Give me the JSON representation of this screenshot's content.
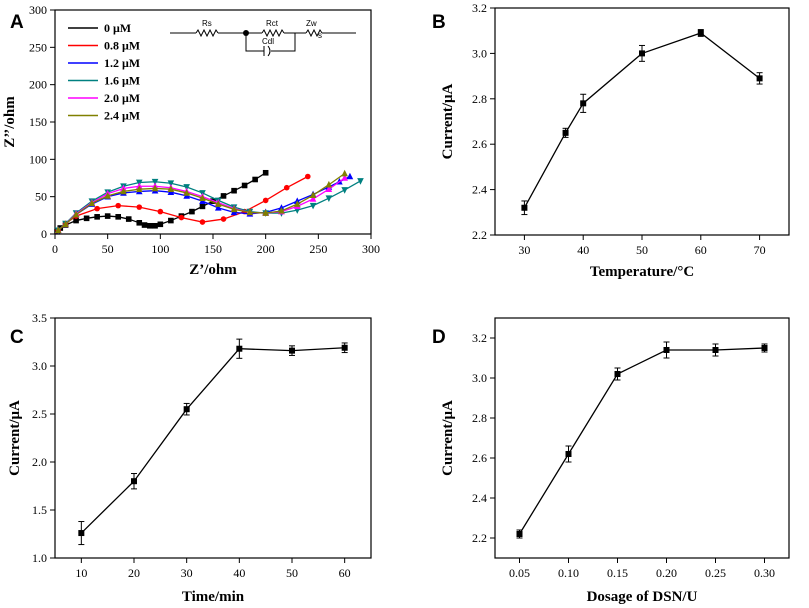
{
  "chart_data": [
    {
      "panel": "A",
      "type": "scatter",
      "xlabel": "Z’/ohm",
      "ylabel": "Z’’/ohm",
      "xlim": [
        0,
        300
      ],
      "ylim": [
        0,
        300
      ],
      "xticks": [
        0,
        50,
        100,
        150,
        200,
        250,
        300
      ],
      "yticks": [
        0,
        50,
        100,
        150,
        200,
        250,
        300
      ],
      "circuit": {
        "rs": "Rs",
        "rct": "Rct",
        "zw": "Zw",
        "zw_sub": "s",
        "cdl": "Cdl"
      },
      "series": [
        {
          "name": "0 μM",
          "color": "#000000",
          "marker": "square",
          "x": [
            2,
            5,
            10,
            20,
            30,
            40,
            50,
            60,
            70,
            80,
            85,
            90,
            95,
            100,
            110,
            120,
            130,
            140,
            150,
            160,
            170,
            180,
            190,
            200
          ],
          "y": [
            3,
            8,
            12,
            18,
            21,
            23,
            24,
            23,
            20,
            15,
            12,
            11,
            11,
            13,
            18,
            24,
            30,
            37,
            44,
            51,
            58,
            65,
            73,
            82
          ]
        },
        {
          "name": "0.8 μM",
          "color": "#ff0000",
          "marker": "circle",
          "x": [
            3,
            10,
            20,
            40,
            60,
            80,
            100,
            120,
            140,
            160,
            180,
            200,
            220,
            240
          ],
          "y": [
            5,
            14,
            24,
            34,
            38,
            36,
            30,
            22,
            16,
            20,
            30,
            45,
            62,
            77
          ]
        },
        {
          "name": "1.2 μM",
          "color": "#0000ff",
          "marker": "triangle-up",
          "x": [
            3,
            10,
            20,
            35,
            50,
            65,
            80,
            95,
            110,
            125,
            140,
            155,
            170,
            185,
            200,
            215,
            230,
            245,
            260,
            270,
            280
          ],
          "y": [
            5,
            13,
            26,
            40,
            50,
            55,
            57,
            58,
            56,
            51,
            44,
            35,
            29,
            27,
            29,
            35,
            44,
            53,
            63,
            70,
            77
          ]
        },
        {
          "name": "1.6 μM",
          "color": "#008080",
          "marker": "triangle-down",
          "x": [
            3,
            10,
            20,
            35,
            50,
            65,
            80,
            95,
            110,
            125,
            140,
            155,
            170,
            185,
            200,
            215,
            230,
            245,
            260,
            275,
            290
          ],
          "y": [
            5,
            14,
            28,
            44,
            56,
            64,
            69,
            70,
            68,
            63,
            55,
            45,
            36,
            30,
            28,
            28,
            32,
            38,
            48,
            59,
            71
          ]
        },
        {
          "name": "2.0 μM",
          "color": "#ff00ff",
          "marker": "triangle-up",
          "x": [
            3,
            10,
            20,
            35,
            50,
            65,
            80,
            95,
            110,
            125,
            140,
            155,
            170,
            185,
            200,
            215,
            230,
            245,
            260,
            275
          ],
          "y": [
            5,
            13,
            27,
            42,
            54,
            61,
            64,
            64,
            62,
            57,
            50,
            42,
            34,
            29,
            28,
            30,
            37,
            47,
            60,
            75
          ]
        },
        {
          "name": "2.4 μM",
          "color": "#808000",
          "marker": "triangle-up",
          "x": [
            3,
            10,
            20,
            35,
            50,
            65,
            80,
            95,
            110,
            125,
            140,
            155,
            170,
            185,
            200,
            215,
            230,
            245,
            260,
            275
          ],
          "y": [
            5,
            13,
            26,
            41,
            51,
            57,
            60,
            61,
            60,
            55,
            48,
            40,
            33,
            29,
            28,
            31,
            40,
            52,
            66,
            81
          ]
        }
      ]
    },
    {
      "panel": "B",
      "type": "line",
      "xlabel": "Temperature/°C",
      "ylabel": "Current/μA",
      "xlim": [
        25,
        75
      ],
      "ylim": [
        2.2,
        3.2
      ],
      "xticks": [
        30,
        40,
        50,
        60,
        70
      ],
      "yticks": [
        2.2,
        2.4,
        2.6,
        2.8,
        3.0,
        3.2
      ],
      "x": [
        30,
        37,
        40,
        50,
        60,
        70
      ],
      "y": [
        2.32,
        2.65,
        2.78,
        3.0,
        3.09,
        2.89
      ],
      "err": [
        0.03,
        0.02,
        0.04,
        0.035,
        0.015,
        0.025
      ]
    },
    {
      "panel": "C",
      "type": "line",
      "xlabel": "Time/min",
      "ylabel": "Current/μA",
      "xlim": [
        5,
        65
      ],
      "ylim": [
        1.0,
        3.5
      ],
      "xticks": [
        10,
        20,
        30,
        40,
        50,
        60
      ],
      "yticks": [
        1.0,
        1.5,
        2.0,
        2.5,
        3.0,
        3.5
      ],
      "x": [
        10,
        20,
        30,
        40,
        50,
        60
      ],
      "y": [
        1.26,
        1.8,
        2.55,
        3.18,
        3.16,
        3.19
      ],
      "err": [
        0.12,
        0.08,
        0.06,
        0.1,
        0.05,
        0.05
      ]
    },
    {
      "panel": "D",
      "type": "line",
      "xlabel": "Dosage of DSN/U",
      "ylabel": "Current/μA",
      "xlim": [
        0.025,
        0.325
      ],
      "ylim": [
        2.1,
        3.3
      ],
      "xticks": [
        0.05,
        0.1,
        0.15,
        0.2,
        0.25,
        0.3
      ],
      "xtick_labels": [
        "0.05",
        "0.10",
        "0.15",
        "0.20",
        "0.25",
        "0.30"
      ],
      "yticks": [
        2.2,
        2.4,
        2.6,
        2.8,
        3.0,
        3.2
      ],
      "x": [
        0.05,
        0.1,
        0.15,
        0.2,
        0.25,
        0.3
      ],
      "y": [
        2.22,
        2.62,
        3.02,
        3.14,
        3.14,
        3.15
      ],
      "err": [
        0.02,
        0.04,
        0.03,
        0.04,
        0.03,
        0.02
      ]
    }
  ]
}
